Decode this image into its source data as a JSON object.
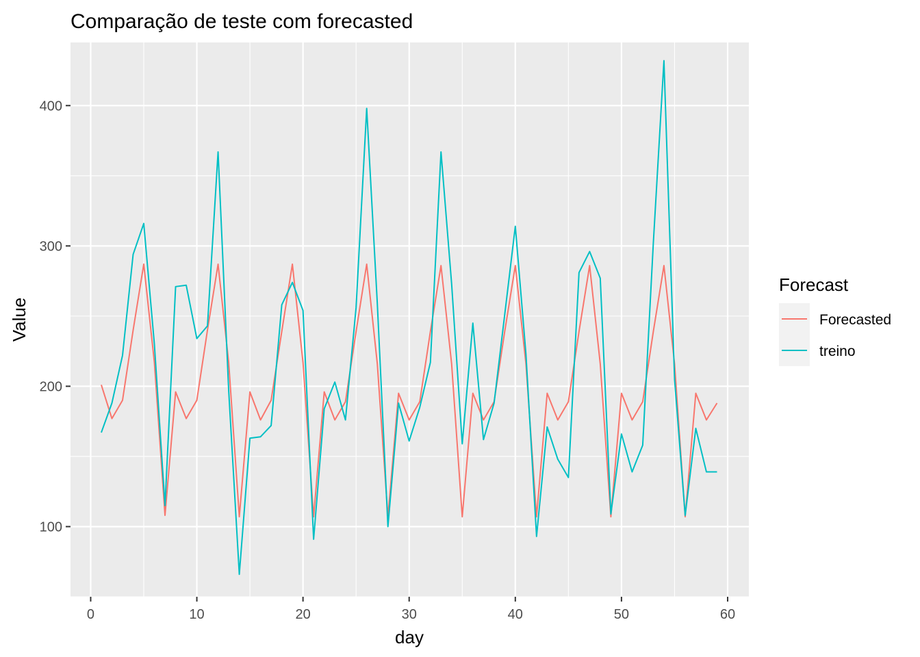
{
  "chart_data": {
    "type": "line",
    "title": "Comparação de teste com forecasted",
    "xlabel": "day",
    "ylabel": "Value",
    "xlim": [
      -1.9,
      62
    ],
    "ylim": [
      50,
      445
    ],
    "x_ticks": [
      0,
      10,
      20,
      30,
      40,
      50,
      60
    ],
    "x_tick_labels": [
      "0",
      "10",
      "20",
      "30",
      "40",
      "50",
      "60"
    ],
    "y_ticks": [
      100,
      200,
      300,
      400
    ],
    "y_tick_labels": [
      "100",
      "200",
      "300",
      "400"
    ],
    "grid": true,
    "legend": {
      "title": "Forecast",
      "position": "right"
    },
    "series": [
      {
        "name": "Forecasted",
        "color": "#F8766D",
        "x": [
          1,
          2,
          3,
          4,
          5,
          6,
          7,
          8,
          9,
          10,
          11,
          12,
          13,
          14,
          15,
          16,
          17,
          18,
          19,
          20,
          21,
          22,
          23,
          24,
          25,
          26,
          27,
          28,
          29,
          30,
          31,
          32,
          33,
          34,
          35,
          36,
          37,
          38,
          39,
          40,
          41,
          42,
          43,
          44,
          45,
          46,
          47,
          48,
          49,
          50,
          51,
          52,
          53,
          54,
          55,
          56,
          57,
          58,
          59
        ],
        "y": [
          201,
          177,
          190,
          240,
          287,
          217,
          108,
          196,
          177,
          190,
          240,
          287,
          217,
          107,
          196,
          176,
          190,
          239,
          287,
          217,
          107,
          196,
          176,
          189,
          239,
          287,
          216,
          107,
          195,
          176,
          189,
          239,
          286,
          216,
          107,
          195,
          176,
          189,
          239,
          286,
          216,
          107,
          195,
          176,
          189,
          239,
          286,
          216,
          107,
          195,
          176,
          189,
          239,
          286,
          216,
          107,
          195,
          176,
          188
        ]
      },
      {
        "name": "treino",
        "color": "#00BFC4",
        "x": [
          1,
          2,
          3,
          4,
          5,
          6,
          7,
          8,
          9,
          10,
          11,
          12,
          13,
          14,
          15,
          16,
          17,
          18,
          19,
          20,
          21,
          22,
          23,
          24,
          25,
          26,
          27,
          28,
          29,
          30,
          31,
          32,
          33,
          34,
          35,
          36,
          37,
          38,
          39,
          40,
          41,
          42,
          43,
          44,
          45,
          46,
          47,
          48,
          49,
          50,
          51,
          52,
          53,
          54,
          55,
          56,
          57,
          58,
          59
        ],
        "y": [
          167,
          188,
          222,
          294,
          316,
          230,
          115,
          271,
          272,
          234,
          243,
          367,
          197,
          66,
          163,
          164,
          172,
          258,
          274,
          254,
          91,
          184,
          203,
          176,
          256,
          398,
          259,
          100,
          188,
          161,
          185,
          217,
          367,
          273,
          159,
          245,
          162,
          188,
          251,
          314,
          223,
          93,
          171,
          148,
          135,
          281,
          296,
          277,
          109,
          166,
          139,
          158,
          302,
          432,
          205,
          108,
          170,
          139,
          139
        ]
      }
    ]
  }
}
